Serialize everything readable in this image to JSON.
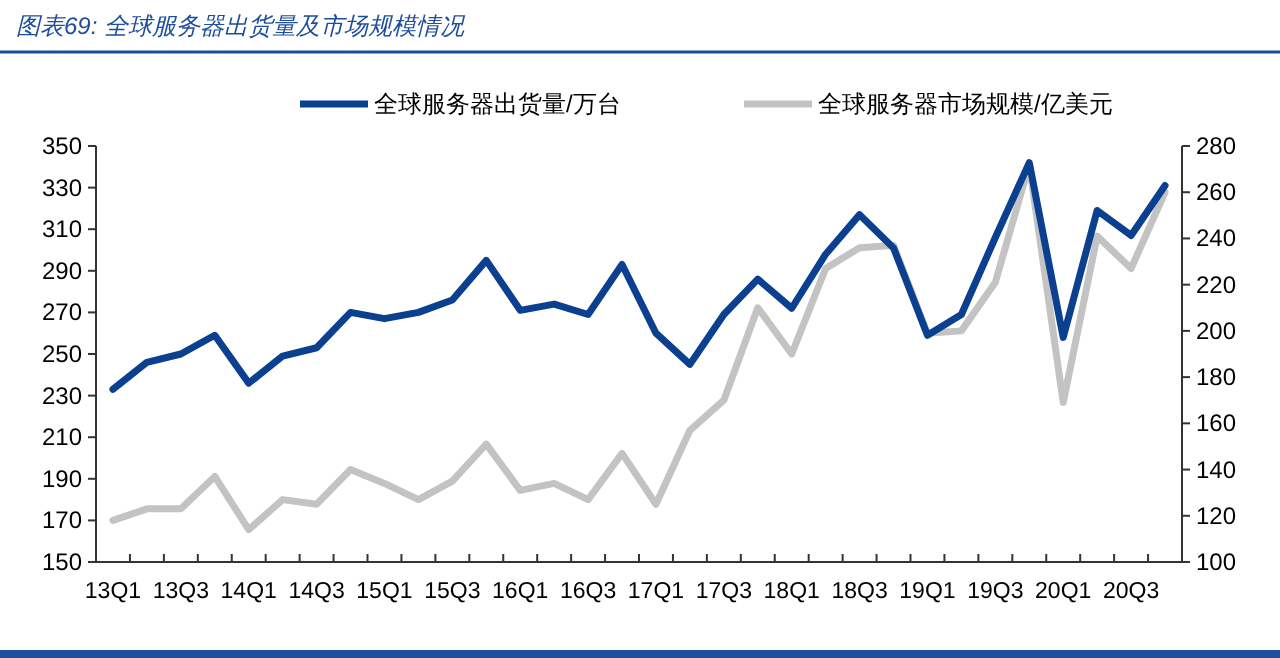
{
  "chart_data": {
    "type": "line",
    "title": "图表69:  全球服务器出货量及市场规模情况",
    "categories": [
      "13Q1",
      null,
      "13Q3",
      null,
      "14Q1",
      null,
      "14Q3",
      null,
      "15Q1",
      null,
      "15Q3",
      null,
      "16Q1",
      null,
      "16Q3",
      null,
      "17Q1",
      null,
      "17Q3",
      null,
      "18Q1",
      null,
      "18Q3",
      null,
      "19Q1",
      null,
      "19Q3",
      null,
      "20Q1",
      null,
      "20Q3",
      null
    ],
    "series": [
      {
        "name": "全球服务器出货量/万台",
        "color": "#0b3f8f",
        "values": [
          233,
          246,
          250,
          259,
          236,
          249,
          253,
          270,
          267,
          270,
          276,
          295,
          271,
          274,
          269,
          293,
          260,
          245,
          269,
          286,
          272,
          298,
          317,
          301,
          259,
          269,
          306,
          342,
          258,
          319,
          307,
          331
        ]
      },
      {
        "name": "全球服务器市场规模/亿美元",
        "color": "#c3c3c3",
        "axis": "y2",
        "values": [
          118,
          123,
          123,
          137,
          114,
          127,
          125,
          140,
          134,
          127,
          135,
          151,
          131,
          134,
          127,
          147,
          125,
          157,
          170,
          210,
          190,
          227,
          236,
          237,
          199,
          200,
          221,
          272,
          169,
          241,
          227,
          260
        ]
      }
    ],
    "ylim": [
      150,
      350
    ],
    "yticks": [
      150,
      170,
      190,
      210,
      230,
      250,
      270,
      290,
      310,
      330,
      350
    ],
    "y2lim": [
      100,
      280
    ],
    "y2ticks": [
      100,
      120,
      140,
      160,
      180,
      200,
      220,
      240,
      260,
      280
    ],
    "legend": "top",
    "grid": false
  }
}
